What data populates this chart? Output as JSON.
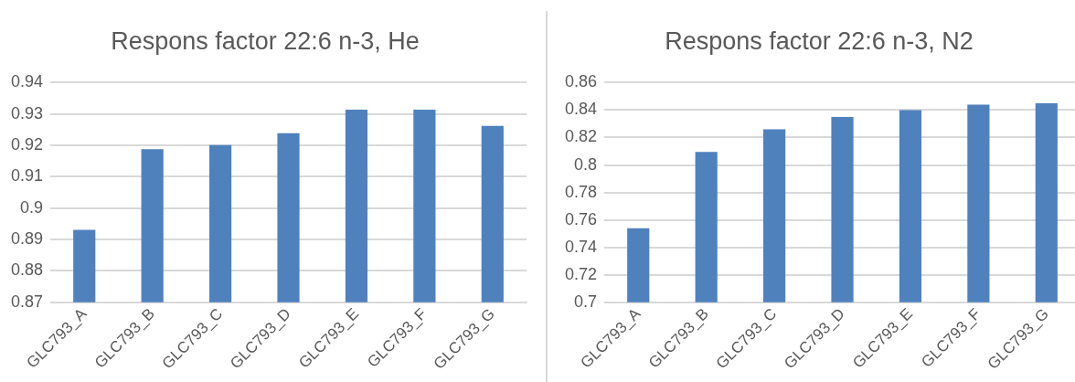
{
  "chart_data": [
    {
      "type": "bar",
      "title": "Respons factor 22:6 n-3, He",
      "categories": [
        "GLC793_A",
        "GLC793_B",
        "GLC793_C",
        "GLC793_D",
        "GLC793_E",
        "GLC793_F",
        "GLC793_G"
      ],
      "values": [
        0.8931,
        0.9188,
        0.9201,
        0.9239,
        0.9314,
        0.9314,
        0.9262
      ],
      "color": "#4f81bd",
      "ylim": [
        0.87,
        0.94
      ],
      "yticks": [
        0.87,
        0.88,
        0.89,
        0.9,
        0.91,
        0.92,
        0.93,
        0.94
      ],
      "grid": "y"
    },
    {
      "type": "bar",
      "title": "Respons factor 22:6 n-3, N2",
      "categories": [
        "GLC793_A",
        "GLC793_B",
        "GLC793_C",
        "GLC793_D",
        "GLC793_E",
        "GLC793_F",
        "GLC793_G"
      ],
      "values": [
        0.754,
        0.8095,
        0.826,
        0.835,
        0.84,
        0.844,
        0.845
      ],
      "color": "#4f81bd",
      "ylim": [
        0.7,
        0.86
      ],
      "yticks": [
        0.7,
        0.72,
        0.74,
        0.76,
        0.78,
        0.8,
        0.82,
        0.84,
        0.86
      ],
      "grid": "y"
    }
  ]
}
